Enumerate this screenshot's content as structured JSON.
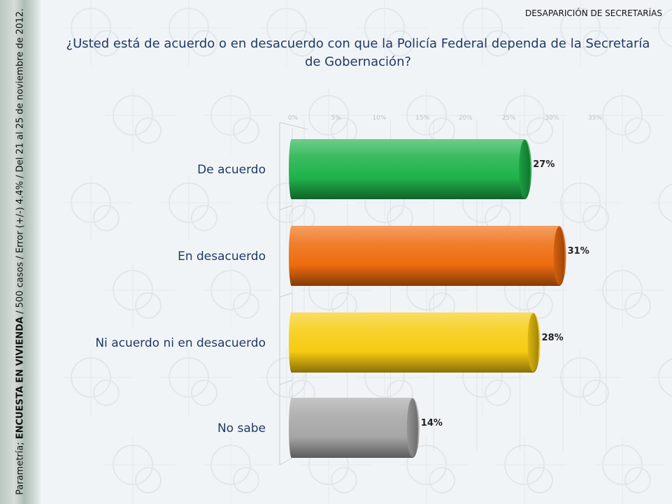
{
  "header": {
    "section_title": "DESAPARICIÓN DE SECRETARÍAS"
  },
  "sidebar": {
    "prefix": "Parametría; ",
    "survey": "ENCUESTA EN VIVIENDA",
    "details": " / 500 casos / Error (+/-) 4.4% / Del 21 al 25 de noviembre de 2012."
  },
  "chart_data": {
    "type": "bar",
    "orientation": "horizontal",
    "title": "¿Usted está de acuerdo o en desacuerdo con que la Policía Federal dependa de la Secretaría de Gobernación?",
    "categories": [
      "De acuerdo",
      "En desacuerdo",
      "Ni acuerdo ni en desacuerdo",
      "No sabe"
    ],
    "values": [
      27,
      31,
      28,
      14
    ],
    "value_labels": [
      "27%",
      "31%",
      "28%",
      "14%"
    ],
    "colors": [
      "#1fb24a",
      "#ee6c0f",
      "#f6cb10",
      "#a6a6a6"
    ],
    "xlim": [
      0,
      35
    ],
    "ticks": [
      "0%",
      "5%",
      "10%",
      "15%",
      "20%",
      "25%",
      "30%",
      "35%"
    ],
    "grid": true,
    "legend": "none"
  }
}
